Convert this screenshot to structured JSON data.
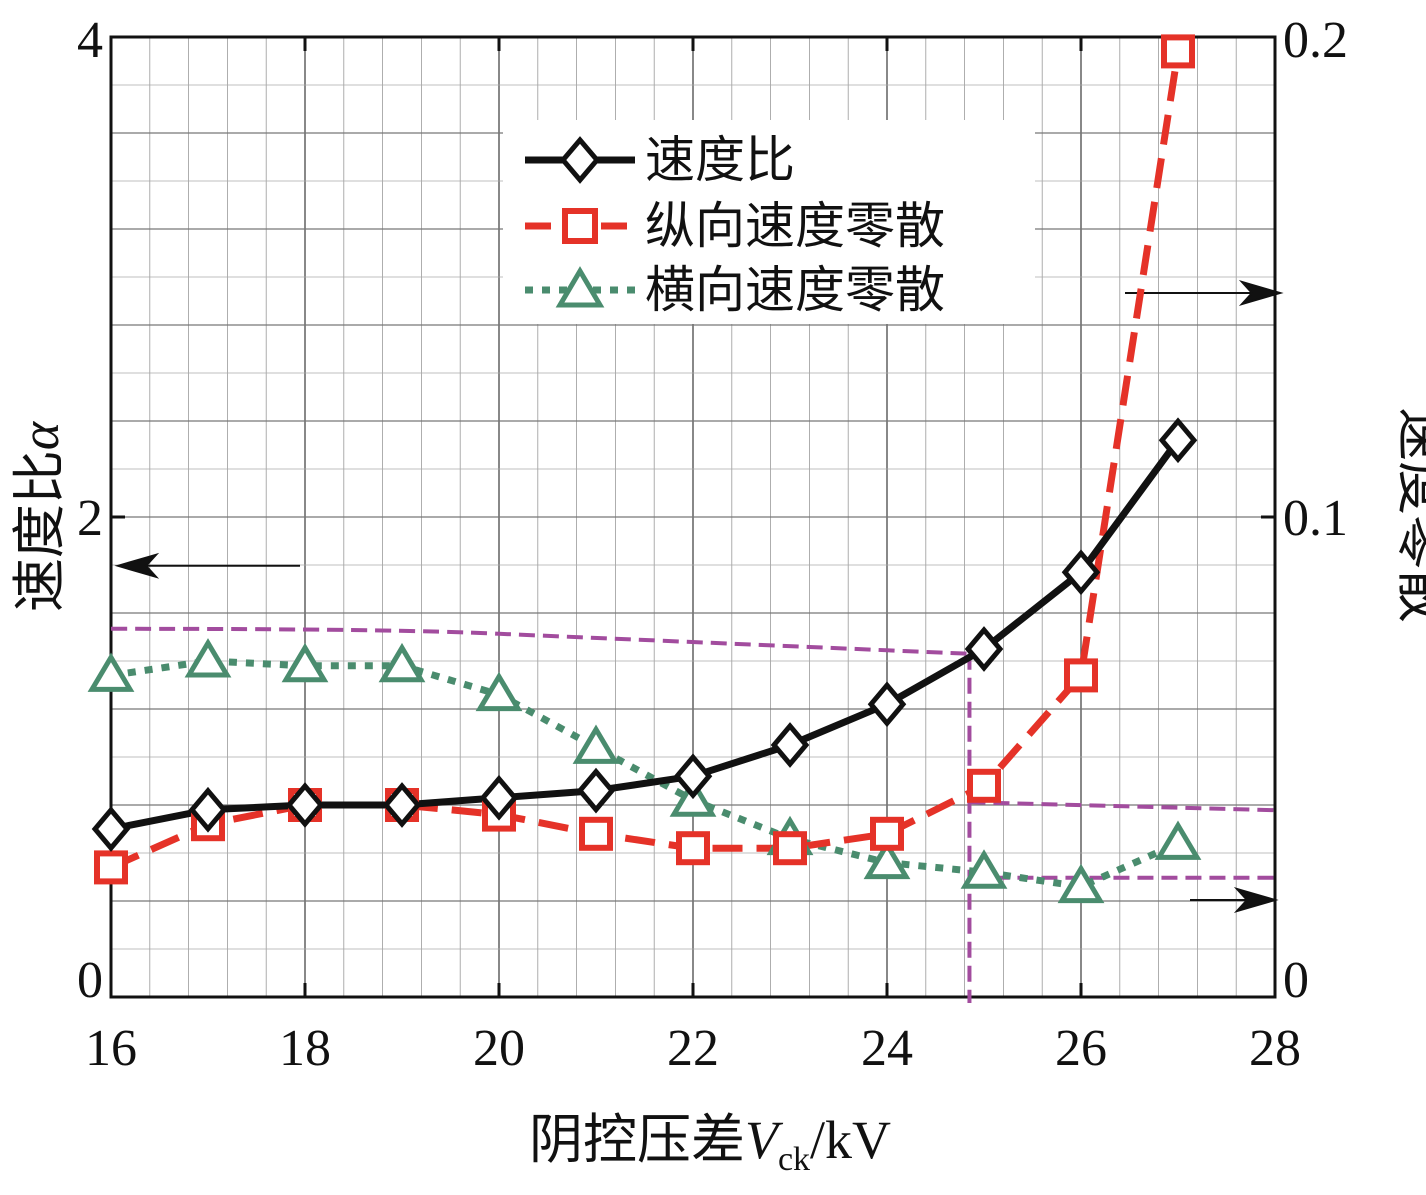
{
  "chart_data": {
    "type": "line",
    "xlabel_main": "阴控压差",
    "xlabel_var": "V",
    "xlabel_sub": "ck",
    "xlabel_unit": "/kV",
    "ylabel_left": "速度比",
    "ylabel_left_var": "α",
    "ylabel_right": "速度零散",
    "xlim": [
      16,
      28
    ],
    "ylim_left": [
      0,
      4
    ],
    "ylim_right": [
      0,
      0.2
    ],
    "x_ticks": [
      "16",
      "18",
      "20",
      "22",
      "24",
      "26",
      "28"
    ],
    "y_left_ticks": [
      "0",
      "2",
      "4"
    ],
    "y_right_ticks": [
      "0",
      "0.1",
      "0.2"
    ],
    "grid": true,
    "legend_position": "top-center",
    "x": [
      16,
      17,
      18,
      19,
      20,
      21,
      22,
      23,
      24,
      25,
      26,
      27
    ],
    "series": [
      {
        "name": "速度比",
        "axis": "left",
        "color": "#111111",
        "style": "solid",
        "marker": "diamond",
        "values": [
          0.7,
          0.78,
          0.8,
          0.8,
          0.83,
          0.86,
          0.92,
          1.05,
          1.22,
          1.45,
          1.77,
          2.32
        ]
      },
      {
        "name": "纵向速度零散",
        "axis": "right",
        "color": "#e53228",
        "style": "dashed",
        "marker": "square",
        "values": [
          0.027,
          0.036,
          0.04,
          0.04,
          0.038,
          0.034,
          0.031,
          0.031,
          0.034,
          0.044,
          0.067,
          0.197
        ]
      },
      {
        "name": "横向速度零散",
        "axis": "right",
        "color": "#4a8c6e",
        "style": "dotted",
        "marker": "triangle",
        "values": [
          0.067,
          0.07,
          0.069,
          0.069,
          0.063,
          0.052,
          0.041,
          0.033,
          0.028,
          0.026,
          0.023,
          0.032
        ]
      }
    ],
    "reference_lines": {
      "color": "#a24c9e",
      "vertical_x": 24.85,
      "left_level": 1.43,
      "longitudinal_level": 0.041,
      "transverse_level": 0.024
    }
  }
}
